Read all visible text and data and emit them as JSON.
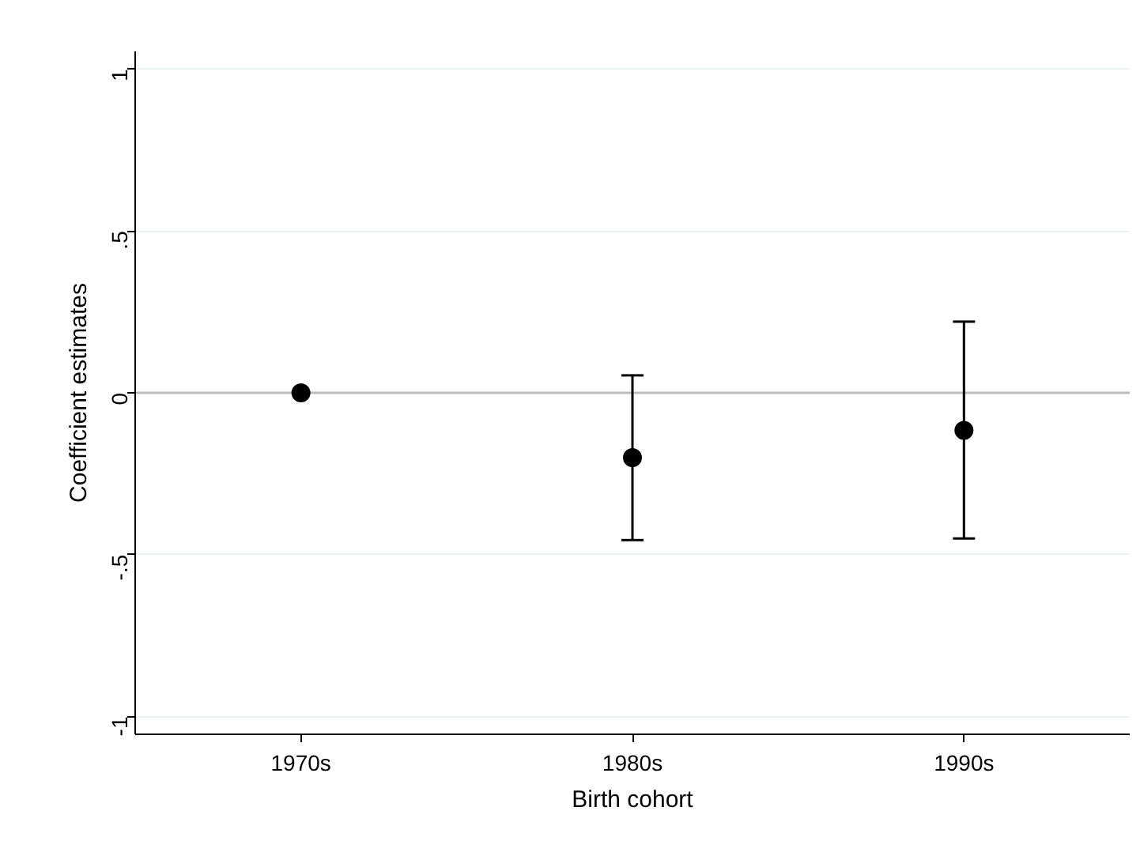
{
  "chart_data": {
    "type": "scatter",
    "xlabel": "Birth cohort",
    "ylabel": "Coefficient estimates",
    "categories": [
      "1970s",
      "1980s",
      "1990s"
    ],
    "series": [
      {
        "color": "#000000",
        "values": [
          0,
          -0.2,
          -0.116
        ],
        "errors": [
          null,
          [
            -0.455,
            0.054
          ],
          [
            -0.45,
            0.22
          ]
        ]
      }
    ],
    "ylim": [
      -1.055,
      1.055
    ],
    "yticks": [
      {
        "value": -1,
        "label": "-1"
      },
      {
        "value": -0.5,
        "label": "-.5"
      },
      0,
      {
        "value": 0.5,
        "label": ".5"
      },
      1
    ],
    "ref_lines": [
      {
        "axis": "y",
        "value": 0,
        "color": "#bdbdbd"
      }
    ],
    "grid": "y",
    "marker": "circle"
  }
}
